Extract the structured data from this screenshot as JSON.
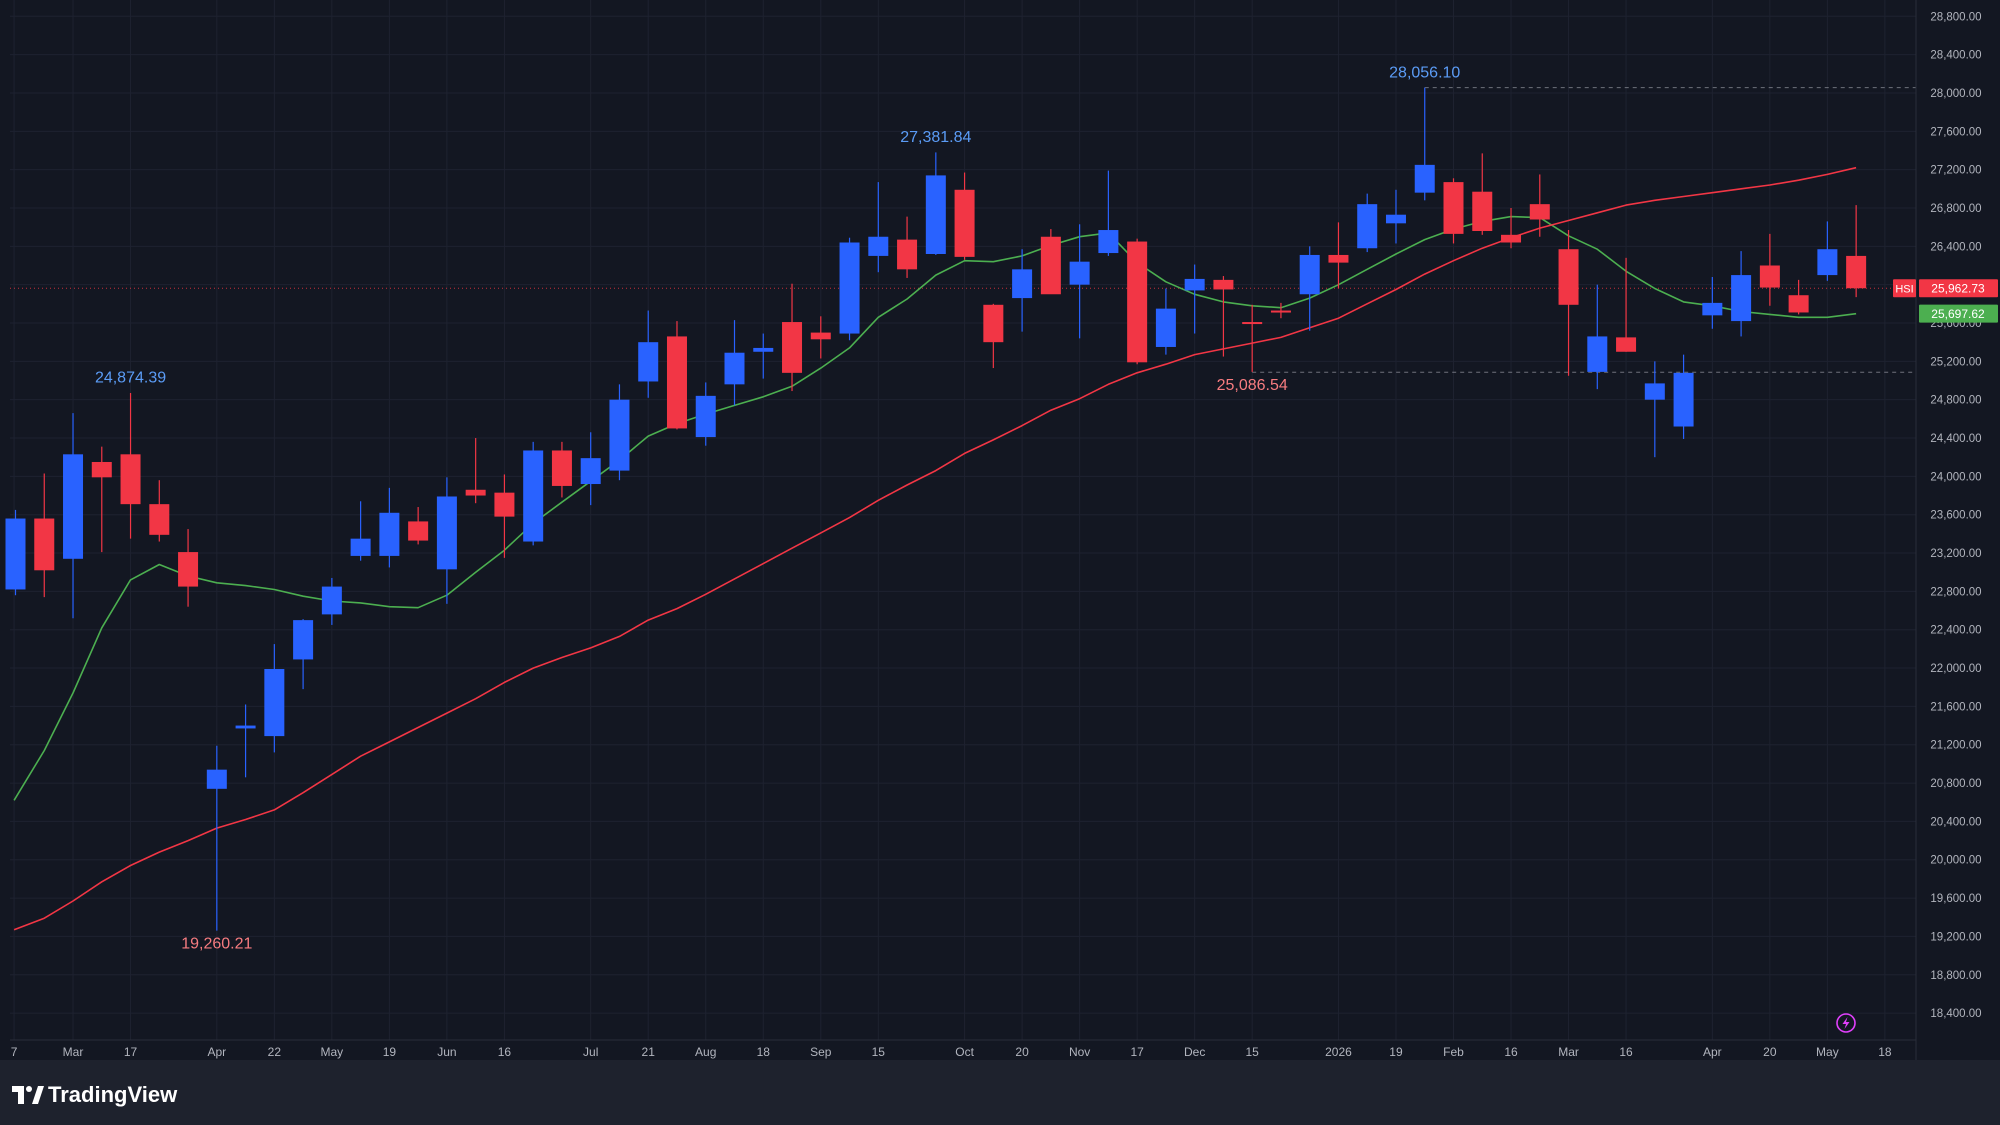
{
  "app": {
    "brand": "TradingView",
    "symbol_tag": "HSI"
  },
  "colors": {
    "background": "#131722",
    "grid": "#1e2230",
    "bullish": "#2962ff",
    "bearish": "#f23645",
    "ma_short": "#4caf50",
    "ma_long": "#f23645",
    "axis_text": "#b2b5be",
    "high_label": "#5b9cf6",
    "low_label": "#f77c80"
  },
  "chart_data": {
    "type": "candlestick",
    "title": "",
    "xlabel": "",
    "ylabel": "",
    "ylim": [
      18000,
      28900
    ],
    "y_ticks": [
      "18,400.00",
      "18,800.00",
      "19,200.00",
      "19,600.00",
      "20,000.00",
      "20,400.00",
      "20,800.00",
      "21,200.00",
      "21,600.00",
      "22,000.00",
      "22,400.00",
      "22,800.00",
      "23,200.00",
      "23,600.00",
      "24,000.00",
      "24,400.00",
      "24,800.00",
      "25,200.00",
      "25,600.00",
      "26,000.00",
      "26,400.00",
      "26,800.00",
      "27,200.00",
      "27,600.00",
      "28,000.00",
      "28,400.00",
      "28,800.00"
    ],
    "x_ticks": [
      {
        "label": "7",
        "week": -0.05
      },
      {
        "label": "Mar",
        "week": 2
      },
      {
        "label": "17",
        "week": 4
      },
      {
        "label": "Apr",
        "week": 7
      },
      {
        "label": "22",
        "week": 9
      },
      {
        "label": "May",
        "week": 11
      },
      {
        "label": "19",
        "week": 13
      },
      {
        "label": "Jun",
        "week": 15
      },
      {
        "label": "16",
        "week": 17
      },
      {
        "label": "Jul",
        "week": 20
      },
      {
        "label": "21",
        "week": 22
      },
      {
        "label": "Aug",
        "week": 24
      },
      {
        "label": "18",
        "week": 26
      },
      {
        "label": "Sep",
        "week": 28
      },
      {
        "label": "15",
        "week": 30
      },
      {
        "label": "Oct",
        "week": 33
      },
      {
        "label": "20",
        "week": 35
      },
      {
        "label": "Nov",
        "week": 37
      },
      {
        "label": "17",
        "week": 39
      },
      {
        "label": "Dec",
        "week": 41
      },
      {
        "label": "15",
        "week": 43
      },
      {
        "label": "2026",
        "week": 46
      },
      {
        "label": "19",
        "week": 48
      },
      {
        "label": "Feb",
        "week": 50
      },
      {
        "label": "16",
        "week": 52
      },
      {
        "label": "Mar",
        "week": 54
      },
      {
        "label": "16",
        "week": 56
      },
      {
        "label": "Apr",
        "week": 59
      },
      {
        "label": "20",
        "week": 61
      },
      {
        "label": "May",
        "week": 63
      },
      {
        "label": "18",
        "week": 65
      }
    ],
    "candles": [
      {
        "week": 0,
        "o": 22820,
        "h": 23650,
        "l": 22760,
        "c": 23560
      },
      {
        "week": 1,
        "o": 23560,
        "h": 24030,
        "l": 22740,
        "c": 23020
      },
      {
        "week": 2,
        "o": 23140,
        "h": 24660,
        "l": 22520,
        "c": 24230
      },
      {
        "week": 3,
        "o": 24150,
        "h": 24310,
        "l": 23210,
        "c": 23990
      },
      {
        "week": 4,
        "o": 24230,
        "h": 24870,
        "l": 23350,
        "c": 23710
      },
      {
        "week": 5,
        "o": 23710,
        "h": 23960,
        "l": 23320,
        "c": 23390
      },
      {
        "week": 6,
        "o": 23210,
        "h": 23450,
        "l": 22640,
        "c": 22850
      },
      {
        "week": 7,
        "o": 20740,
        "h": 21190,
        "l": 19260,
        "c": 20940
      },
      {
        "week": 8,
        "o": 21370,
        "h": 21620,
        "l": 20860,
        "c": 21400
      },
      {
        "week": 9,
        "o": 21290,
        "h": 22250,
        "l": 21120,
        "c": 21990
      },
      {
        "week": 10,
        "o": 22090,
        "h": 22510,
        "l": 21780,
        "c": 22500
      },
      {
        "week": 11,
        "o": 22560,
        "h": 22940,
        "l": 22450,
        "c": 22850
      },
      {
        "week": 12,
        "o": 23170,
        "h": 23740,
        "l": 23120,
        "c": 23350
      },
      {
        "week": 13,
        "o": 23170,
        "h": 23880,
        "l": 23050,
        "c": 23620
      },
      {
        "week": 14,
        "o": 23530,
        "h": 23680,
        "l": 23290,
        "c": 23330
      },
      {
        "week": 15,
        "o": 23030,
        "h": 23990,
        "l": 22670,
        "c": 23790
      },
      {
        "week": 16,
        "o": 23860,
        "h": 24400,
        "l": 23720,
        "c": 23800
      },
      {
        "week": 17,
        "o": 23830,
        "h": 24020,
        "l": 23150,
        "c": 23580
      },
      {
        "week": 18,
        "o": 23320,
        "h": 24360,
        "l": 23280,
        "c": 24270
      },
      {
        "week": 19,
        "o": 24270,
        "h": 24360,
        "l": 23780,
        "c": 23900
      },
      {
        "week": 20,
        "o": 23920,
        "h": 24460,
        "l": 23700,
        "c": 24190
      },
      {
        "week": 21,
        "o": 24060,
        "h": 24960,
        "l": 23960,
        "c": 24800
      },
      {
        "week": 22,
        "o": 24990,
        "h": 25730,
        "l": 24820,
        "c": 25400
      },
      {
        "week": 23,
        "o": 25460,
        "h": 25620,
        "l": 24490,
        "c": 24500
      },
      {
        "week": 24,
        "o": 24410,
        "h": 24980,
        "l": 24320,
        "c": 24840
      },
      {
        "week": 25,
        "o": 24960,
        "h": 25630,
        "l": 24740,
        "c": 25290
      },
      {
        "week": 26,
        "o": 25300,
        "h": 25490,
        "l": 25020,
        "c": 25340
      },
      {
        "week": 27,
        "o": 25610,
        "h": 26010,
        "l": 24890,
        "c": 25080
      },
      {
        "week": 28,
        "o": 25500,
        "h": 25670,
        "l": 25230,
        "c": 25430
      },
      {
        "week": 29,
        "o": 25490,
        "h": 26490,
        "l": 25420,
        "c": 26440
      },
      {
        "week": 30,
        "o": 26300,
        "h": 27070,
        "l": 26130,
        "c": 26500
      },
      {
        "week": 31,
        "o": 26470,
        "h": 26710,
        "l": 26070,
        "c": 26160
      },
      {
        "week": 32,
        "o": 26320,
        "h": 27380,
        "l": 26310,
        "c": 27140
      },
      {
        "week": 33,
        "o": 26990,
        "h": 27170,
        "l": 26260,
        "c": 26290
      },
      {
        "week": 34,
        "o": 25790,
        "h": 25800,
        "l": 25130,
        "c": 25400
      },
      {
        "week": 35,
        "o": 25860,
        "h": 26370,
        "l": 25510,
        "c": 26160
      },
      {
        "week": 36,
        "o": 26500,
        "h": 26580,
        "l": 25980,
        "c": 25900
      },
      {
        "week": 37,
        "o": 26000,
        "h": 26630,
        "l": 25440,
        "c": 26240
      },
      {
        "week": 38,
        "o": 26330,
        "h": 27190,
        "l": 26300,
        "c": 26570
      },
      {
        "week": 39,
        "o": 26450,
        "h": 26480,
        "l": 25170,
        "c": 25190
      },
      {
        "week": 40,
        "o": 25350,
        "h": 25960,
        "l": 25270,
        "c": 25750
      },
      {
        "week": 41,
        "o": 25940,
        "h": 26210,
        "l": 25490,
        "c": 26060
      },
      {
        "week": 42,
        "o": 26050,
        "h": 26090,
        "l": 25250,
        "c": 25950
      },
      {
        "week": 43,
        "o": 25610,
        "h": 25790,
        "l": 25090,
        "c": 25590
      },
      {
        "week": 44,
        "o": 25730,
        "h": 25810,
        "l": 25650,
        "c": 25720
      },
      {
        "week": 45,
        "o": 25900,
        "h": 26400,
        "l": 25520,
        "c": 26310
      },
      {
        "week": 46,
        "o": 26310,
        "h": 26650,
        "l": 25960,
        "c": 26230
      },
      {
        "week": 47,
        "o": 26380,
        "h": 26950,
        "l": 26340,
        "c": 26840
      },
      {
        "week": 48,
        "o": 26640,
        "h": 26990,
        "l": 26430,
        "c": 26730
      },
      {
        "week": 49,
        "o": 26960,
        "h": 28056,
        "l": 26880,
        "c": 27250
      },
      {
        "week": 50,
        "o": 27070,
        "h": 27110,
        "l": 26430,
        "c": 26530
      },
      {
        "week": 51,
        "o": 26970,
        "h": 27370,
        "l": 26520,
        "c": 26560
      },
      {
        "week": 52,
        "o": 26520,
        "h": 26800,
        "l": 26380,
        "c": 26440
      },
      {
        "week": 53,
        "o": 26840,
        "h": 27150,
        "l": 26500,
        "c": 26680
      },
      {
        "week": 54,
        "o": 26370,
        "h": 26570,
        "l": 25050,
        "c": 25790
      },
      {
        "week": 55,
        "o": 25090,
        "h": 26000,
        "l": 24910,
        "c": 25460
      },
      {
        "week": 56,
        "o": 25450,
        "h": 26280,
        "l": 25300,
        "c": 25300
      },
      {
        "week": 57,
        "o": 24800,
        "h": 25200,
        "l": 24200,
        "c": 24970
      },
      {
        "week": 58,
        "o": 24520,
        "h": 25270,
        "l": 24390,
        "c": 25080
      },
      {
        "week": 59,
        "o": 25680,
        "h": 26080,
        "l": 25540,
        "c": 25810
      },
      {
        "week": 60,
        "o": 25620,
        "h": 26350,
        "l": 25460,
        "c": 26100
      },
      {
        "week": 61,
        "o": 26200,
        "h": 26530,
        "l": 25780,
        "c": 25970
      },
      {
        "week": 62,
        "o": 25890,
        "h": 26050,
        "l": 25690,
        "c": 25710
      },
      {
        "week": 63,
        "o": 26100,
        "h": 26660,
        "l": 26040,
        "c": 26370
      },
      {
        "week": 64,
        "o": 26300,
        "h": 26830,
        "l": 25870,
        "c": 25962.73
      }
    ],
    "series": [
      {
        "type": "line",
        "color": "#4caf50",
        "values": [
          [
            -0.05,
            20620
          ],
          [
            1,
            21140
          ],
          [
            2,
            21740
          ],
          [
            3,
            22420
          ],
          [
            4,
            22920
          ],
          [
            5,
            23080
          ],
          [
            6,
            22960
          ],
          [
            7,
            22890
          ],
          [
            8,
            22860
          ],
          [
            9,
            22820
          ],
          [
            10,
            22750
          ],
          [
            11,
            22700
          ],
          [
            12,
            22680
          ],
          [
            13,
            22640
          ],
          [
            14,
            22630
          ],
          [
            15,
            22760
          ],
          [
            16,
            23000
          ],
          [
            17,
            23230
          ],
          [
            18,
            23510
          ],
          [
            19,
            23730
          ],
          [
            20,
            23950
          ],
          [
            21,
            24170
          ],
          [
            22,
            24420
          ],
          [
            23,
            24550
          ],
          [
            24,
            24650
          ],
          [
            25,
            24740
          ],
          [
            26,
            24830
          ],
          [
            27,
            24940
          ],
          [
            28,
            25130
          ],
          [
            29,
            25340
          ],
          [
            30,
            25660
          ],
          [
            31,
            25850
          ],
          [
            32,
            26100
          ],
          [
            33,
            26250
          ],
          [
            34,
            26240
          ],
          [
            35,
            26300
          ],
          [
            36,
            26410
          ],
          [
            37,
            26500
          ],
          [
            38,
            26540
          ],
          [
            39,
            26230
          ],
          [
            40,
            26030
          ],
          [
            41,
            25900
          ],
          [
            42,
            25820
          ],
          [
            43,
            25780
          ],
          [
            44,
            25760
          ],
          [
            45,
            25860
          ],
          [
            46,
            26000
          ],
          [
            47,
            26160
          ],
          [
            48,
            26320
          ],
          [
            49,
            26470
          ],
          [
            50,
            26580
          ],
          [
            51,
            26660
          ],
          [
            52,
            26710
          ],
          [
            53,
            26700
          ],
          [
            54,
            26510
          ],
          [
            55,
            26370
          ],
          [
            56,
            26140
          ],
          [
            57,
            25960
          ],
          [
            58,
            25820
          ],
          [
            59,
            25780
          ],
          [
            60,
            25720
          ],
          [
            61,
            25690
          ],
          [
            62,
            25660
          ],
          [
            63,
            25660
          ],
          [
            64,
            25697.62
          ]
        ]
      },
      {
        "type": "line",
        "color": "#f23645",
        "values": [
          [
            -0.05,
            19270
          ],
          [
            1,
            19390
          ],
          [
            2,
            19570
          ],
          [
            3,
            19770
          ],
          [
            4,
            19940
          ],
          [
            5,
            20080
          ],
          [
            6,
            20200
          ],
          [
            7,
            20330
          ],
          [
            8,
            20420
          ],
          [
            9,
            20520
          ],
          [
            10,
            20700
          ],
          [
            11,
            20890
          ],
          [
            12,
            21080
          ],
          [
            13,
            21230
          ],
          [
            14,
            21380
          ],
          [
            15,
            21530
          ],
          [
            16,
            21680
          ],
          [
            17,
            21850
          ],
          [
            18,
            22000
          ],
          [
            19,
            22110
          ],
          [
            20,
            22210
          ],
          [
            21,
            22330
          ],
          [
            22,
            22500
          ],
          [
            23,
            22620
          ],
          [
            24,
            22770
          ],
          [
            25,
            22930
          ],
          [
            26,
            23090
          ],
          [
            27,
            23250
          ],
          [
            28,
            23410
          ],
          [
            29,
            23570
          ],
          [
            30,
            23750
          ],
          [
            31,
            23910
          ],
          [
            32,
            24060
          ],
          [
            33,
            24240
          ],
          [
            34,
            24380
          ],
          [
            35,
            24530
          ],
          [
            36,
            24690
          ],
          [
            37,
            24810
          ],
          [
            38,
            24960
          ],
          [
            39,
            25080
          ],
          [
            40,
            25170
          ],
          [
            41,
            25270
          ],
          [
            42,
            25330
          ],
          [
            43,
            25390
          ],
          [
            44,
            25450
          ],
          [
            45,
            25550
          ],
          [
            46,
            25650
          ],
          [
            47,
            25800
          ],
          [
            48,
            25950
          ],
          [
            49,
            26110
          ],
          [
            50,
            26250
          ],
          [
            51,
            26380
          ],
          [
            52,
            26490
          ],
          [
            53,
            26590
          ],
          [
            54,
            26670
          ],
          [
            55,
            26750
          ],
          [
            56,
            26830
          ],
          [
            57,
            26880
          ],
          [
            58,
            26920
          ],
          [
            59,
            26960
          ],
          [
            60,
            27000
          ],
          [
            61,
            27040
          ],
          [
            62,
            27090
          ],
          [
            63,
            27150
          ],
          [
            64,
            27220
          ]
        ]
      }
    ],
    "annotations": [
      {
        "text": "24,874.39",
        "week": 4,
        "value": 24874.39,
        "kind": "high"
      },
      {
        "text": "19,260.21",
        "week": 7,
        "value": 19260.21,
        "kind": "low"
      },
      {
        "text": "27,381.84",
        "week": 32,
        "value": 27381.84,
        "kind": "high"
      },
      {
        "text": "25,086.54",
        "week": 43,
        "value": 25086.54,
        "kind": "low"
      },
      {
        "text": "28,056.10",
        "week": 49,
        "value": 28056.1,
        "kind": "high"
      }
    ],
    "price_labels": [
      {
        "text": "25,962.73",
        "value": 25962.73,
        "color": "#f23645",
        "tag": "HSI"
      },
      {
        "text": "25,697.62",
        "value": 25697.62,
        "color": "#4caf50"
      }
    ],
    "grid": true
  }
}
